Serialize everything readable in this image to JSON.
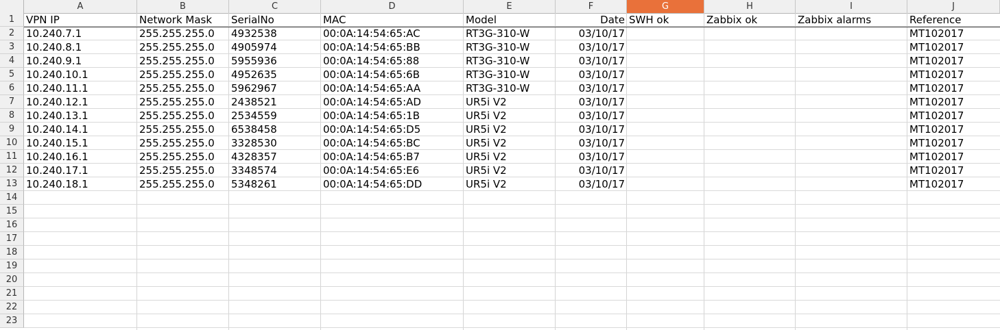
{
  "columns": [
    "A",
    "B",
    "C",
    "D",
    "E",
    "F",
    "G",
    "H",
    "I",
    "J"
  ],
  "selected_column": "G",
  "row_numbers": [
    "1",
    "2",
    "3",
    "4",
    "5",
    "6",
    "7",
    "8",
    "9",
    "10",
    "11",
    "12",
    "13",
    "14",
    "15",
    "16",
    "17",
    "18",
    "19",
    "20",
    "21",
    "22",
    "23"
  ],
  "headers": [
    "VPN IP",
    "Network Mask",
    "SerialNo",
    "MAC",
    "Model",
    "Date",
    "SWH ok",
    "Zabbix ok",
    "Zabbix alarms",
    "Reference"
  ],
  "rows": [
    [
      "10.240.7.1",
      "255.255.255.0",
      "4932538",
      "00:0A:14:54:65:AC",
      "RT3G-310-W",
      "03/10/17",
      "",
      "",
      "",
      "MT102017"
    ],
    [
      "10.240.8.1",
      "255.255.255.0",
      "4905974",
      "00:0A:14:54:65:BB",
      "RT3G-310-W",
      "03/10/17",
      "",
      "",
      "",
      "MT102017"
    ],
    [
      "10.240.9.1",
      "255.255.255.0",
      "5955936",
      "00:0A:14:54:65:88",
      "RT3G-310-W",
      "03/10/17",
      "",
      "",
      "",
      "MT102017"
    ],
    [
      "10.240.10.1",
      "255.255.255.0",
      "4952635",
      "00:0A:14:54:65:6B",
      "RT3G-310-W",
      "03/10/17",
      "",
      "",
      "",
      "MT102017"
    ],
    [
      "10.240.11.1",
      "255.255.255.0",
      "5962967",
      "00:0A:14:54:65:AA",
      "RT3G-310-W",
      "03/10/17",
      "",
      "",
      "",
      "MT102017"
    ],
    [
      "10.240.12.1",
      "255.255.255.0",
      "2438521",
      "00:0A:14:54:65:AD",
      "UR5i V2",
      "03/10/17",
      "",
      "",
      "",
      "MT102017"
    ],
    [
      "10.240.13.1",
      "255.255.255.0",
      "2534559",
      "00:0A:14:54:65:1B",
      "UR5i V2",
      "03/10/17",
      "",
      "",
      "",
      "MT102017"
    ],
    [
      "10.240.14.1",
      "255.255.255.0",
      "6538458",
      "00:0A:14:54:65:D5",
      "UR5i V2",
      "03/10/17",
      "",
      "",
      "",
      "MT102017"
    ],
    [
      "10.240.15.1",
      "255.255.255.0",
      "3328530",
      "00:0A:14:54:65:BC",
      "UR5i V2",
      "03/10/17",
      "",
      "",
      "",
      "MT102017"
    ],
    [
      "10.240.16.1",
      "255.255.255.0",
      "4328357",
      "00:0A:14:54:65:B7",
      "UR5i V2",
      "03/10/17",
      "",
      "",
      "",
      "MT102017"
    ],
    [
      "10.240.17.1",
      "255.255.255.0",
      "3348574",
      "00:0A:14:54:65:E6",
      "UR5i V2",
      "03/10/17",
      "",
      "",
      "",
      "MT102017"
    ],
    [
      "10.240.18.1",
      "255.255.255.0",
      "5348261",
      "00:0A:14:54:65:DD",
      "UR5i V2",
      "03/10/17",
      "",
      "",
      "",
      "MT102017"
    ]
  ]
}
